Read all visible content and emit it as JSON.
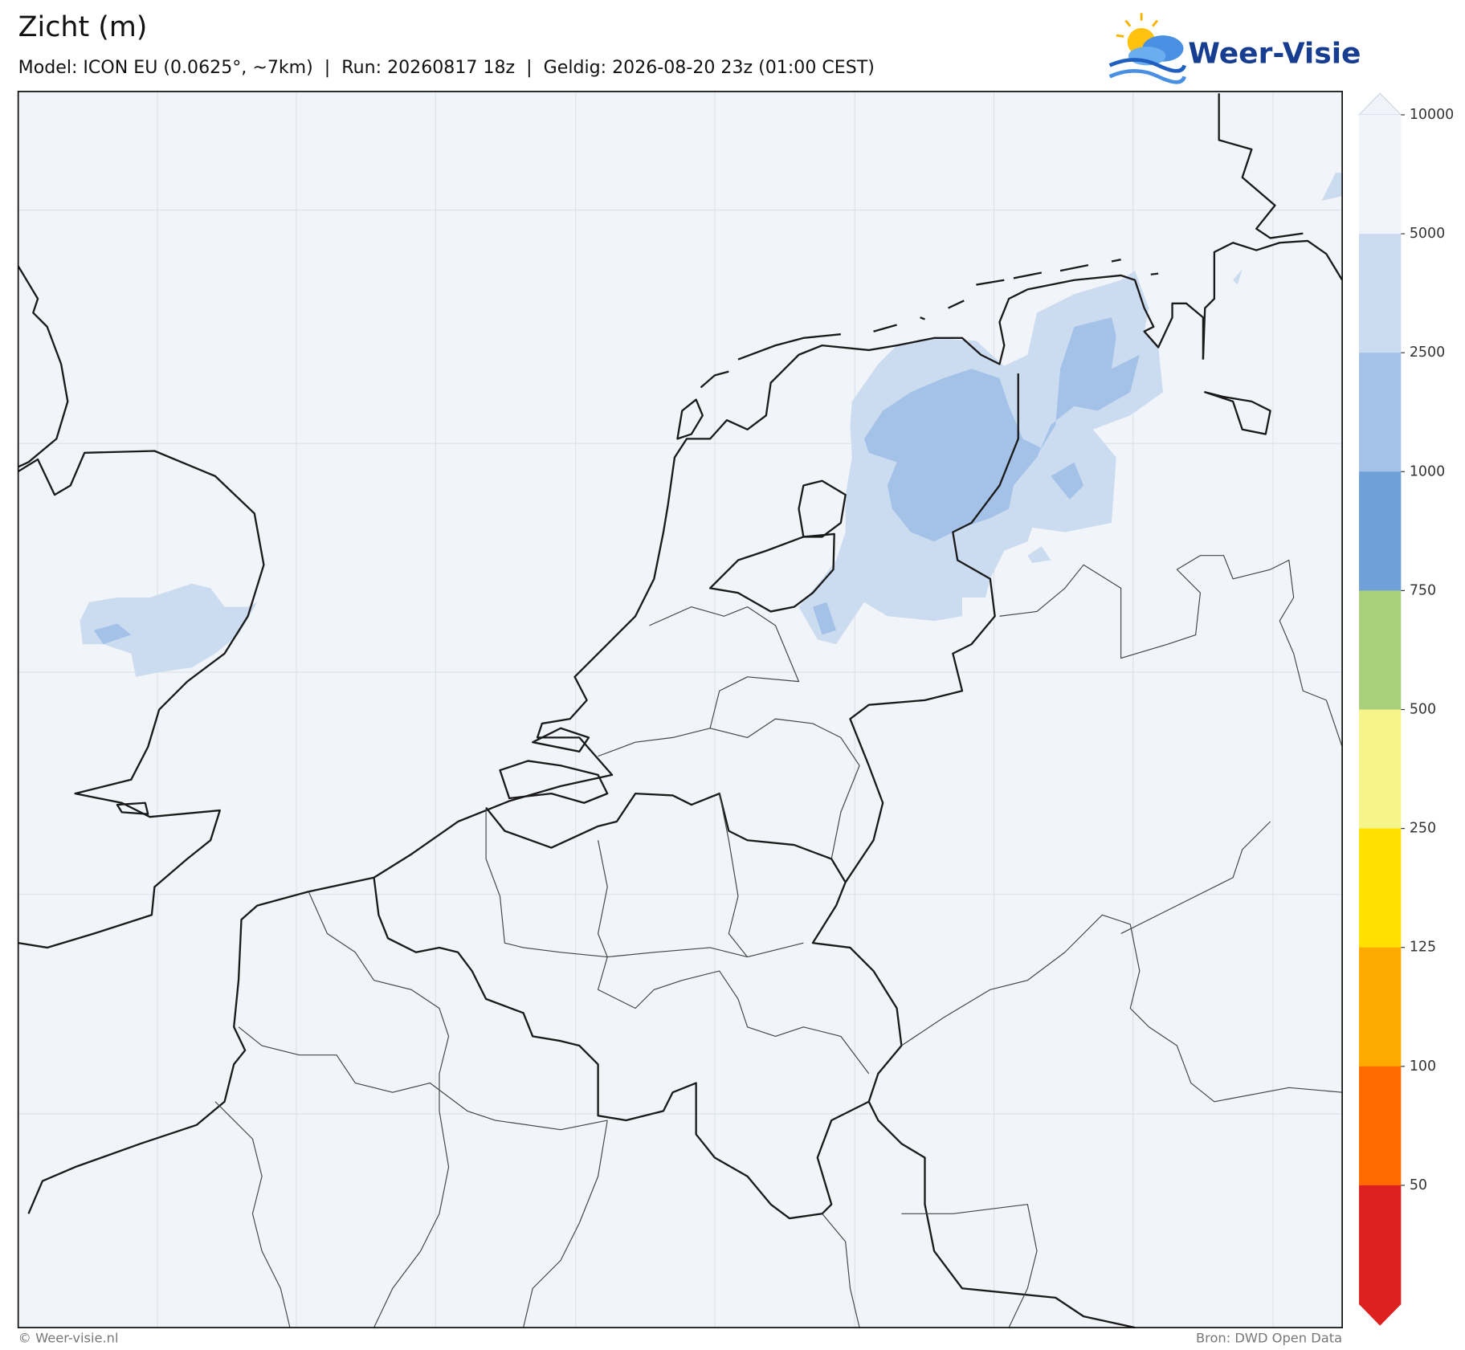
{
  "header": {
    "title": "Zicht (m)",
    "subtitle": "Model: ICON EU (0.0625°, ~7km)  |  Run: 20260817 18z  |  Geldig: 2026-08-20 23z (01:00 CEST)",
    "logo": "Weer-Visie"
  },
  "colorbar": {
    "ticks": [
      10000,
      5000,
      2500,
      1000,
      750,
      500,
      250,
      125,
      100,
      50
    ],
    "colors": [
      "#f0f4fa",
      "#ccdcf0",
      "#a4c2e8",
      "#6fa0d8",
      "#a8d07a",
      "#f5f58a",
      "#ffe000",
      "#ffaa00",
      "#ff6a00",
      "#dd2020"
    ]
  },
  "footer": {
    "left": "© Weer-visie.nl",
    "right": "Bron: DWD Open Data"
  }
}
